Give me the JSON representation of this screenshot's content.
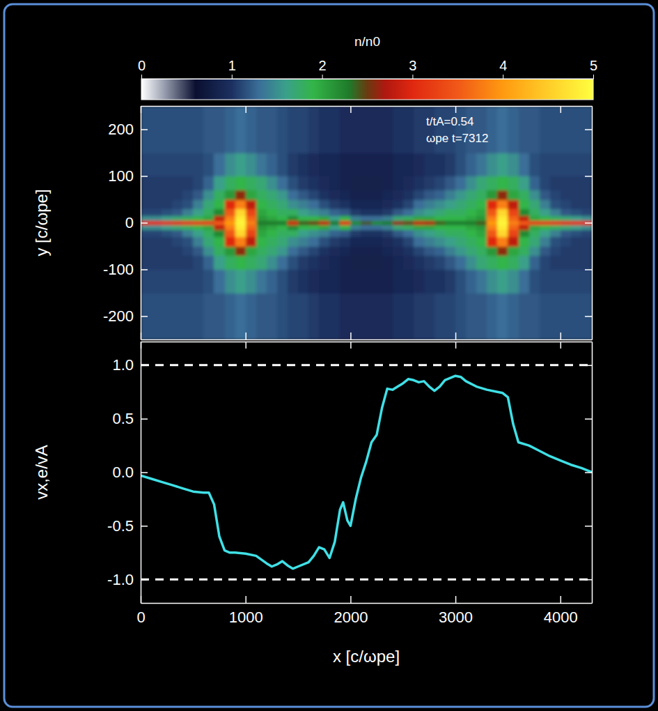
{
  "chart_data": [
    {
      "type": "heatmap",
      "ylabel": "y [c/ωpe]",
      "annotations": [
        "t/tA=0.54",
        "ωpe t=7312"
      ],
      "xlim": [
        0,
        4300
      ],
      "ylim": [
        -250,
        250
      ],
      "xticks": [
        0,
        1000,
        2000,
        3000,
        4000
      ],
      "yticks": [
        -200,
        -100,
        0,
        100,
        200
      ],
      "tick_labels": "y",
      "x_edges": [
        0,
        100,
        200,
        300,
        400,
        500,
        600,
        700,
        800,
        900,
        1000,
        1100,
        1200,
        1300,
        1400,
        1500,
        1600,
        1700,
        1800,
        1900,
        2000,
        2100,
        2200,
        2300,
        2400,
        2500,
        2600,
        2700,
        2800,
        2900,
        3000,
        3100,
        3200,
        3300,
        3400,
        3500,
        3600,
        3700,
        3800,
        3900,
        4000,
        4100,
        4200,
        4300
      ],
      "y_edges": [
        -250,
        -150,
        -100,
        -70,
        -50,
        -30,
        -15,
        -5,
        5,
        15,
        30,
        50,
        70,
        100,
        150,
        250
      ],
      "cells": [
        [
          1.15,
          1.15,
          1.15,
          1.15,
          1.15,
          1.15,
          1.2,
          1.2,
          1.25,
          1.3,
          1.25,
          1.2,
          1.2,
          1.15,
          1.1,
          1.1,
          1.05,
          1.0,
          1.0,
          0.95,
          0.95,
          0.95,
          0.95,
          0.95,
          1.0,
          1.0,
          1.05,
          1.05,
          1.1,
          1.1,
          1.15,
          1.2,
          1.2,
          1.25,
          1.3,
          1.25,
          1.2,
          1.2,
          1.15,
          1.15,
          1.15,
          1.15,
          1.15
        ],
        [
          1.1,
          1.1,
          1.1,
          1.1,
          1.1,
          1.1,
          1.15,
          1.3,
          1.5,
          1.6,
          1.5,
          1.35,
          1.25,
          1.15,
          1.05,
          1.0,
          0.95,
          0.9,
          0.9,
          0.85,
          0.85,
          0.85,
          0.85,
          0.85,
          0.9,
          0.9,
          0.95,
          1.0,
          1.0,
          1.05,
          1.15,
          1.25,
          1.35,
          1.5,
          1.6,
          1.5,
          1.3,
          1.15,
          1.1,
          1.1,
          1.1,
          1.1,
          1.1
        ],
        [
          1.05,
          1.05,
          1.05,
          1.05,
          1.05,
          1.1,
          1.25,
          1.6,
          1.8,
          1.9,
          1.8,
          1.7,
          1.5,
          1.3,
          1.15,
          1.05,
          1.0,
          0.95,
          0.9,
          0.85,
          0.8,
          0.8,
          0.8,
          0.85,
          0.9,
          0.95,
          1.0,
          1.05,
          1.1,
          1.2,
          1.3,
          1.5,
          1.7,
          1.8,
          1.9,
          1.8,
          1.6,
          1.25,
          1.1,
          1.05,
          1.05,
          1.05,
          1.05
        ],
        [
          1.05,
          1.05,
          1.05,
          1.05,
          1.1,
          1.2,
          1.5,
          1.8,
          2.1,
          2.6,
          2.0,
          1.8,
          1.7,
          1.55,
          1.3,
          1.2,
          1.1,
          1.0,
          0.95,
          0.9,
          0.85,
          0.85,
          0.85,
          0.9,
          0.95,
          1.0,
          1.1,
          1.2,
          1.25,
          1.4,
          1.55,
          1.7,
          1.8,
          2.1,
          2.6,
          2.0,
          1.8,
          1.5,
          1.2,
          1.1,
          1.05,
          1.05,
          1.05
        ],
        [
          1.05,
          1.05,
          1.05,
          1.1,
          1.15,
          1.4,
          1.7,
          1.9,
          3.0,
          3.8,
          2.8,
          1.9,
          1.8,
          1.7,
          1.5,
          1.4,
          1.3,
          1.15,
          1.05,
          1.0,
          0.9,
          0.9,
          0.9,
          0.95,
          1.0,
          1.1,
          1.3,
          1.4,
          1.5,
          1.6,
          1.7,
          1.8,
          1.9,
          3.0,
          3.8,
          2.8,
          1.9,
          1.7,
          1.4,
          1.15,
          1.1,
          1.05,
          1.05
        ],
        [
          1.1,
          1.1,
          1.15,
          1.2,
          1.4,
          1.6,
          1.8,
          2.2,
          3.5,
          4.6,
          3.3,
          2.0,
          1.9,
          1.8,
          1.8,
          1.6,
          1.5,
          1.4,
          1.25,
          1.2,
          1.05,
          1.0,
          1.0,
          1.05,
          1.2,
          1.3,
          1.5,
          1.6,
          1.7,
          1.8,
          1.8,
          1.9,
          2.0,
          3.5,
          4.6,
          3.3,
          2.2,
          1.8,
          1.6,
          1.4,
          1.2,
          1.15,
          1.1
        ],
        [
          1.5,
          1.5,
          1.6,
          1.7,
          1.8,
          1.9,
          2.0,
          2.8,
          3.8,
          4.8,
          3.6,
          2.1,
          2.0,
          1.9,
          2.2,
          1.9,
          1.9,
          2.0,
          1.6,
          1.9,
          1.4,
          1.3,
          1.3,
          1.4,
          1.7,
          1.8,
          2.0,
          2.0,
          1.9,
          1.9,
          1.9,
          2.0,
          2.1,
          3.8,
          4.8,
          3.6,
          2.8,
          2.0,
          1.9,
          1.8,
          1.7,
          1.6,
          1.5
        ],
        [
          3.0,
          3.0,
          3.0,
          3.0,
          3.1,
          3.1,
          3.2,
          3.5,
          4.0,
          4.9,
          3.8,
          2.3,
          2.3,
          2.3,
          2.9,
          2.4,
          2.5,
          2.8,
          2.3,
          3.0,
          2.2,
          2.4,
          2.2,
          2.3,
          2.6,
          2.5,
          2.8,
          2.7,
          2.4,
          2.3,
          2.3,
          2.3,
          2.4,
          4.0,
          4.9,
          3.8,
          3.5,
          3.2,
          3.1,
          3.1,
          3.0,
          3.0,
          3.0
        ],
        [
          1.5,
          1.5,
          1.6,
          1.7,
          1.8,
          1.9,
          2.0,
          2.8,
          3.8,
          4.8,
          3.6,
          2.1,
          2.0,
          1.9,
          2.2,
          1.9,
          1.9,
          2.0,
          1.6,
          1.9,
          1.4,
          1.3,
          1.3,
          1.4,
          1.7,
          1.8,
          2.0,
          2.0,
          1.9,
          1.9,
          1.9,
          2.0,
          2.1,
          3.8,
          4.8,
          3.6,
          2.8,
          2.0,
          1.9,
          1.8,
          1.7,
          1.6,
          1.5
        ],
        [
          1.1,
          1.1,
          1.15,
          1.2,
          1.4,
          1.6,
          1.8,
          2.2,
          3.5,
          4.6,
          3.3,
          2.0,
          1.9,
          1.8,
          1.8,
          1.6,
          1.5,
          1.4,
          1.25,
          1.2,
          1.05,
          1.0,
          1.0,
          1.05,
          1.2,
          1.3,
          1.5,
          1.6,
          1.7,
          1.8,
          1.8,
          1.9,
          2.0,
          3.5,
          4.6,
          3.3,
          2.2,
          1.8,
          1.6,
          1.4,
          1.2,
          1.15,
          1.1
        ],
        [
          1.05,
          1.05,
          1.05,
          1.1,
          1.15,
          1.4,
          1.7,
          1.9,
          3.0,
          3.8,
          2.8,
          1.9,
          1.8,
          1.7,
          1.5,
          1.4,
          1.3,
          1.15,
          1.05,
          1.0,
          0.9,
          0.9,
          0.9,
          0.95,
          1.0,
          1.1,
          1.3,
          1.4,
          1.5,
          1.6,
          1.7,
          1.8,
          1.9,
          3.0,
          3.8,
          2.8,
          1.9,
          1.7,
          1.4,
          1.15,
          1.1,
          1.05,
          1.05
        ],
        [
          1.05,
          1.05,
          1.05,
          1.05,
          1.1,
          1.2,
          1.5,
          1.8,
          2.1,
          2.6,
          2.0,
          1.8,
          1.7,
          1.55,
          1.3,
          1.2,
          1.1,
          1.0,
          0.95,
          0.9,
          0.85,
          0.85,
          0.85,
          0.9,
          0.95,
          1.0,
          1.1,
          1.2,
          1.25,
          1.4,
          1.55,
          1.7,
          1.8,
          2.1,
          2.6,
          2.0,
          1.8,
          1.5,
          1.2,
          1.1,
          1.05,
          1.05,
          1.05
        ],
        [
          1.05,
          1.05,
          1.05,
          1.05,
          1.05,
          1.1,
          1.25,
          1.6,
          1.8,
          1.9,
          1.8,
          1.7,
          1.5,
          1.3,
          1.15,
          1.05,
          1.0,
          0.95,
          0.9,
          0.85,
          0.8,
          0.8,
          0.8,
          0.85,
          0.9,
          0.95,
          1.0,
          1.05,
          1.1,
          1.2,
          1.3,
          1.5,
          1.7,
          1.8,
          1.9,
          1.8,
          1.6,
          1.25,
          1.1,
          1.05,
          1.05,
          1.05,
          1.05
        ],
        [
          1.1,
          1.1,
          1.1,
          1.1,
          1.1,
          1.1,
          1.15,
          1.3,
          1.5,
          1.6,
          1.5,
          1.35,
          1.25,
          1.15,
          1.05,
          1.0,
          0.95,
          0.9,
          0.9,
          0.85,
          0.85,
          0.85,
          0.85,
          0.85,
          0.9,
          0.9,
          0.95,
          1.0,
          1.0,
          1.05,
          1.15,
          1.25,
          1.35,
          1.5,
          1.6,
          1.5,
          1.3,
          1.15,
          1.1,
          1.1,
          1.1,
          1.1,
          1.1
        ],
        [
          1.15,
          1.15,
          1.15,
          1.15,
          1.15,
          1.15,
          1.2,
          1.2,
          1.25,
          1.3,
          1.25,
          1.2,
          1.2,
          1.15,
          1.1,
          1.1,
          1.05,
          1.0,
          1.0,
          0.95,
          0.95,
          0.95,
          0.95,
          0.95,
          1.0,
          1.0,
          1.05,
          1.05,
          1.1,
          1.1,
          1.15,
          1.2,
          1.2,
          1.25,
          1.3,
          1.25,
          1.2,
          1.2,
          1.15,
          1.15,
          1.15,
          1.15,
          1.15
        ]
      ],
      "colorbar": {
        "label": "n/n0",
        "range": [
          0,
          5
        ],
        "ticks": [
          0,
          1,
          2,
          3,
          4,
          5
        ]
      }
    },
    {
      "type": "line",
      "xlabel": "x [c/ωpe]",
      "ylabel": "vx,e/vA",
      "color": "#3fe0e6",
      "xlim": [
        0,
        4300
      ],
      "ylim": [
        -1.22,
        1.22
      ],
      "xticks": [
        0,
        1000,
        2000,
        3000,
        4000
      ],
      "yticks": [
        {
          "value": -1.0,
          "label": "-1.0"
        },
        {
          "value": -0.5,
          "label": "-0.5"
        },
        {
          "value": 0.0,
          "label": "0.0"
        },
        {
          "value": 0.5,
          "label": "0.5"
        },
        {
          "value": 1.0,
          "label": "1.0"
        }
      ],
      "hlines": [
        1.0,
        -1.0
      ],
      "x": [
        0,
        100,
        200,
        300,
        400,
        500,
        600,
        650,
        700,
        750,
        800,
        850,
        900,
        1000,
        1100,
        1200,
        1250,
        1300,
        1350,
        1400,
        1450,
        1500,
        1600,
        1650,
        1700,
        1750,
        1800,
        1850,
        1900,
        1930,
        1970,
        2000,
        2050,
        2100,
        2150,
        2200,
        2250,
        2300,
        2350,
        2400,
        2450,
        2500,
        2550,
        2600,
        2650,
        2700,
        2750,
        2800,
        2850,
        2900,
        3000,
        3050,
        3100,
        3200,
        3300,
        3400,
        3450,
        3500,
        3550,
        3600,
        3700,
        3800,
        3900,
        4000,
        4100,
        4200,
        4300
      ],
      "values": [
        -0.03,
        -0.06,
        -0.09,
        -0.12,
        -0.15,
        -0.18,
        -0.19,
        -0.19,
        -0.3,
        -0.6,
        -0.73,
        -0.75,
        -0.75,
        -0.76,
        -0.78,
        -0.85,
        -0.88,
        -0.86,
        -0.83,
        -0.87,
        -0.9,
        -0.88,
        -0.84,
        -0.78,
        -0.7,
        -0.72,
        -0.8,
        -0.65,
        -0.35,
        -0.28,
        -0.45,
        -0.5,
        -0.25,
        -0.05,
        0.1,
        0.28,
        0.35,
        0.6,
        0.78,
        0.77,
        0.8,
        0.83,
        0.87,
        0.86,
        0.84,
        0.85,
        0.8,
        0.76,
        0.8,
        0.86,
        0.9,
        0.89,
        0.85,
        0.8,
        0.77,
        0.75,
        0.74,
        0.7,
        0.45,
        0.28,
        0.25,
        0.2,
        0.15,
        0.11,
        0.07,
        0.04,
        0.0
      ]
    }
  ]
}
